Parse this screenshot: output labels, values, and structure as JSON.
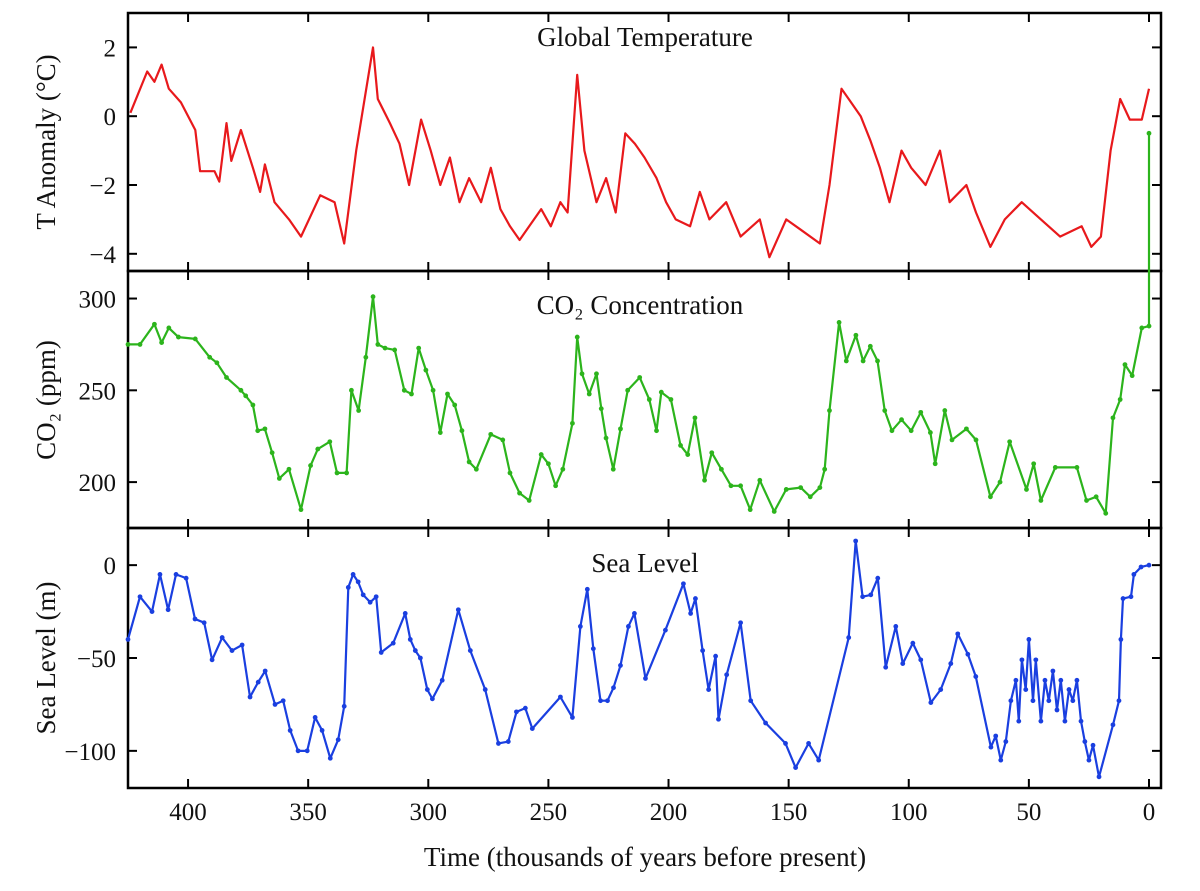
{
  "chart_data": [
    {
      "type": "line",
      "title": "Global Temperature",
      "xlabel": "Time (thousands of years before present)",
      "ylabel": "T Anomaly (°C)",
      "xlim": [
        425,
        -5
      ],
      "ylim": [
        -4.5,
        3
      ],
      "x_reversed": true,
      "yticks": [
        2,
        0,
        -2,
        -4
      ],
      "ytick_labels": [
        "2",
        "0",
        "−2",
        "−4"
      ],
      "color": "#e8191c",
      "markers": false,
      "series": [
        {
          "x": [
            424,
            417,
            414,
            411,
            408,
            403,
            397,
            395,
            389,
            387,
            384,
            382,
            378,
            373,
            370,
            368,
            364,
            358,
            353,
            345,
            339,
            335,
            330,
            323,
            321,
            316,
            312,
            308,
            303,
            299,
            295,
            291,
            287,
            283,
            278,
            274,
            270,
            266,
            262,
            258,
            253,
            249,
            245,
            242,
            238,
            235,
            230,
            226,
            222,
            218,
            214,
            210,
            205,
            201,
            197,
            191,
            187,
            183,
            176,
            170,
            162,
            158,
            151,
            145,
            137,
            133,
            128,
            125,
            120,
            116,
            112,
            108,
            103,
            99,
            93,
            87,
            83,
            76,
            72,
            66,
            60,
            53,
            45,
            37,
            28,
            24,
            20,
            16,
            12,
            8,
            3,
            0
          ],
          "y": [
            0.1,
            1.3,
            1.0,
            1.5,
            0.8,
            0.4,
            -0.4,
            -1.6,
            -1.6,
            -1.9,
            -0.2,
            -1.3,
            -0.4,
            -1.5,
            -2.2,
            -1.4,
            -2.5,
            -3.0,
            -3.5,
            -2.3,
            -2.5,
            -3.7,
            -1.0,
            2.0,
            0.5,
            -0.2,
            -0.8,
            -2.0,
            -0.1,
            -1.0,
            -2.0,
            -1.2,
            -2.5,
            -1.8,
            -2.5,
            -1.5,
            -2.7,
            -3.2,
            -3.6,
            -3.2,
            -2.7,
            -3.2,
            -2.5,
            -2.8,
            1.2,
            -1.0,
            -2.5,
            -1.8,
            -2.8,
            -0.5,
            -0.8,
            -1.2,
            -1.8,
            -2.5,
            -3.0,
            -3.2,
            -2.2,
            -3.0,
            -2.5,
            -3.5,
            -3.0,
            -4.1,
            -3.0,
            -3.3,
            -3.7,
            -2.0,
            0.8,
            0.5,
            0.0,
            -0.7,
            -1.5,
            -2.5,
            -1.0,
            -1.5,
            -2.0,
            -1.0,
            -2.5,
            -2.0,
            -2.8,
            -3.8,
            -3.0,
            -2.5,
            -3.0,
            -3.5,
            -3.2,
            -3.8,
            -3.5,
            -1.0,
            0.5,
            -0.1,
            -0.1,
            0.8
          ]
        }
      ]
    },
    {
      "type": "line",
      "title": "CO₂ Concentration",
      "ylabel": "CO₂ (ppm)",
      "xlim": [
        425,
        -5
      ],
      "ylim": [
        175,
        315
      ],
      "x_reversed": true,
      "yticks": [
        200,
        250,
        300
      ],
      "ytick_labels": [
        "200",
        "250",
        "300"
      ],
      "color": "#2cb41c",
      "markers": true,
      "series": [
        {
          "x": [
            425,
            420,
            414,
            411,
            408,
            404,
            397,
            391,
            388,
            384,
            378,
            376,
            373,
            371,
            368,
            365,
            362,
            358,
            353,
            349,
            346,
            341,
            338,
            334,
            332,
            329,
            326,
            323,
            321,
            318,
            314,
            310,
            307,
            304,
            301,
            298,
            295,
            292,
            289,
            286,
            283,
            280,
            274,
            269,
            266,
            262,
            258,
            253,
            250,
            247,
            244,
            240,
            238,
            236,
            233,
            230,
            228,
            226,
            223,
            220,
            217,
            212,
            208,
            205,
            203,
            199,
            195,
            192,
            189,
            185,
            182,
            178,
            174,
            170,
            166,
            162,
            156,
            151,
            145,
            141,
            137,
            135,
            133,
            129,
            126,
            122,
            119,
            116,
            113,
            110,
            107,
            103,
            99,
            95,
            91,
            89,
            85,
            82,
            76,
            72,
            66,
            62,
            58,
            51,
            48,
            45,
            39,
            30,
            26,
            22,
            18,
            15,
            12,
            10,
            7,
            3,
            0,
            0
          ],
          "y": [
            275,
            275,
            286,
            276,
            284,
            279,
            278,
            268,
            265,
            257,
            250,
            247,
            242,
            228,
            229,
            216,
            202,
            207,
            185,
            209,
            218,
            222,
            205,
            205,
            250,
            239,
            268,
            301,
            275,
            273,
            272,
            250,
            248,
            273,
            261,
            250,
            227,
            248,
            242,
            228,
            211,
            207,
            226,
            223,
            205,
            194,
            190,
            215,
            210,
            198,
            207,
            232,
            279,
            259,
            248,
            259,
            240,
            224,
            207,
            229,
            250,
            257,
            245,
            228,
            249,
            245,
            220,
            215,
            235,
            201,
            216,
            207,
            198,
            198,
            185,
            201,
            184,
            196,
            197,
            192,
            197,
            207,
            239,
            287,
            266,
            280,
            266,
            274,
            266,
            239,
            228,
            234,
            228,
            238,
            227,
            210,
            239,
            223,
            229,
            223,
            192,
            200,
            222,
            196,
            210,
            190,
            208,
            208,
            190,
            192,
            183,
            235,
            245,
            264,
            258,
            284,
            285,
            390
          ]
        }
      ]
    },
    {
      "type": "line",
      "title": "Sea Level",
      "ylabel": "Sea Level (m)",
      "xlim": [
        425,
        -5
      ],
      "ylim": [
        -120,
        20
      ],
      "x_reversed": true,
      "yticks": [
        0,
        -50,
        -100
      ],
      "ytick_labels": [
        "0",
        "−50",
        "−100"
      ],
      "xticks": [
        400,
        350,
        300,
        250,
        200,
        150,
        100,
        50,
        0
      ],
      "xtick_labels": [
        "400",
        "350",
        "300",
        "250",
        "200",
        "150",
        "100",
        "50",
        "0"
      ],
      "color": "#1a3fe0",
      "markers": true,
      "series": [
        {
          "x": [
            425,
            420,
            415,
            411.7,
            408.3,
            405,
            400.8,
            397.1,
            393.3,
            390,
            385.8,
            381.7,
            377.5,
            374.2,
            370.8,
            367.9,
            363.8,
            360.4,
            357.5,
            354.2,
            350.4,
            347.1,
            344.2,
            340.8,
            337.5,
            335,
            333.3,
            331.3,
            329.2,
            327.1,
            324.2,
            321.7,
            319.6,
            314.6,
            309.6,
            307.5,
            305.4,
            303.3,
            300.4,
            298.3,
            294.2,
            287.5,
            282.5,
            276.3,
            270.8,
            266.7,
            263.3,
            259.6,
            256.7,
            245,
            240,
            236.7,
            233.8,
            231.3,
            228.3,
            225.4,
            222.9,
            220,
            216.7,
            214.2,
            209.6,
            201.3,
            193.8,
            190.8,
            188.8,
            185.8,
            183.3,
            180.4,
            179.2,
            175.8,
            170,
            165.8,
            159.6,
            151.3,
            147.1,
            141.7,
            137.5,
            125,
            122.1,
            119.2,
            115.8,
            112.9,
            109.6,
            105.4,
            102.5,
            98.3,
            95,
            90.8,
            86.7,
            82.5,
            79.6,
            75.4,
            72.1,
            65.8,
            63.8,
            61.7,
            59.6,
            57.5,
            55.4,
            54.2,
            52.9,
            51.3,
            50,
            48.3,
            47.1,
            45,
            43.3,
            41.7,
            40,
            38.3,
            36.7,
            35,
            33.3,
            31.7,
            30,
            28.3,
            26.7,
            25,
            23.3,
            20.8,
            15,
            12.5,
            11.7,
            10.8,
            7.5,
            6.3,
            3.3,
            0
          ],
          "y": [
            -40,
            -17,
            -25,
            -5,
            -24,
            -5,
            -7,
            -29,
            -31,
            -51,
            -39,
            -46,
            -43,
            -71,
            -63,
            -57,
            -75,
            -73,
            -89,
            -100,
            -100,
            -82,
            -89,
            -104,
            -94,
            -76,
            -12,
            -5,
            -9,
            -16,
            -20,
            -17,
            -47,
            -42,
            -26,
            -40,
            -46,
            -50,
            -67,
            -72,
            -62,
            -24,
            -46,
            -67,
            -96,
            -95,
            -79,
            -77,
            -88,
            -71,
            -82,
            -33,
            -13,
            -45,
            -73,
            -73,
            -66,
            -54,
            -33,
            -26,
            -61,
            -35,
            -10,
            -26,
            -18,
            -46,
            -67,
            -49,
            -83,
            -59,
            -31,
            -73,
            -85,
            -96,
            -109,
            -96,
            -105,
            -39,
            13,
            -17,
            -16,
            -7,
            -55,
            -33,
            -53,
            -42,
            -51,
            -74,
            -67,
            -53,
            -37,
            -48,
            -60,
            -98,
            -92,
            -105,
            -95,
            -73,
            -62,
            -84,
            -51,
            -67,
            -40,
            -73,
            -51,
            -84,
            -62,
            -73,
            -57,
            -78,
            -62,
            -84,
            -67,
            -73,
            -62,
            -84,
            -95,
            -105,
            -97,
            -114,
            -86,
            -73,
            -40,
            -18,
            -17,
            -5,
            -1,
            0
          ]
        }
      ]
    }
  ]
}
